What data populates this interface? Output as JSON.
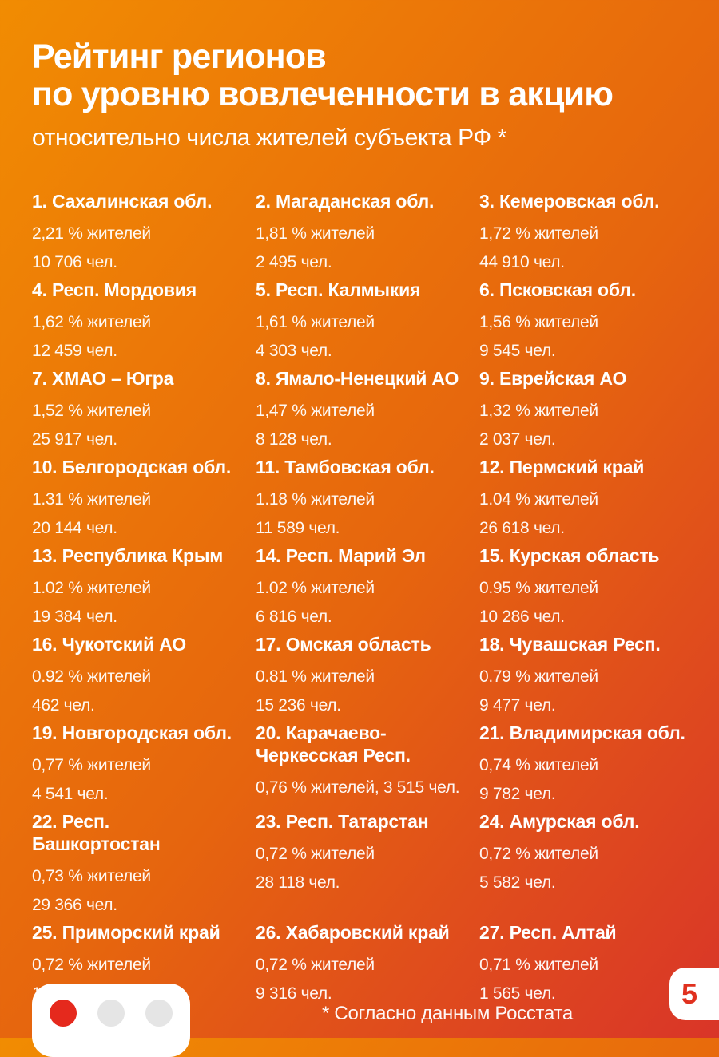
{
  "header": {
    "title_line1": "Рейтинг регионов",
    "title_line2": "по уровню вовлеченности в акцию",
    "subtitle": "относительно числа жителей субъекта РФ *"
  },
  "regions": [
    {
      "label": "1. Сахалинская обл.",
      "percent": "2,21 % жителей",
      "count": "10 706 чел."
    },
    {
      "label": "2. Магаданская обл.",
      "percent": "1,81 % жителей",
      "count": "2 495 чел."
    },
    {
      "label": "3. Кемеровская обл.",
      "percent": "1,72 % жителей",
      "count": "44 910 чел."
    },
    {
      "label": "4. Респ. Мордовия",
      "percent": "1,62 % жителей",
      "count": "12 459 чел."
    },
    {
      "label": "5. Респ. Калмыкия",
      "percent": "1,61 % жителей",
      "count": "4 303 чел."
    },
    {
      "label": "6. Псковская обл.",
      "percent": "1,56 % жителей",
      "count": "9 545 чел."
    },
    {
      "label": "7. ХМАО – Югра",
      "percent": "1,52 % жителей",
      "count": "25 917 чел."
    },
    {
      "label": "8. Ямало-Ненецкий АО",
      "percent": "1,47 % жителей",
      "count": "8 128 чел."
    },
    {
      "label": "9. Еврейская АО",
      "percent": "1,32 % жителей",
      "count": "2 037 чел."
    },
    {
      "label": "10. Белгородская обл.",
      "percent": "1.31 % жителей",
      "count": "20 144 чел."
    },
    {
      "label": "11. Тамбовская обл.",
      "percent": "1.18 % жителей",
      "count": "11 589 чел."
    },
    {
      "label": "12. Пермский край",
      "percent": "1.04 % жителей",
      "count": "26 618 чел."
    },
    {
      "label": "13. Республика Крым",
      "percent": "1.02 % жителей",
      "count": "19 384 чел."
    },
    {
      "label": "14. Респ. Марий Эл",
      "percent": "1.02 % жителей",
      "count": "6 816 чел."
    },
    {
      "label": "15. Курская область",
      "percent": "0.95 % жителей",
      "count": "10 286 чел."
    },
    {
      "label": "16. Чукотский АО",
      "percent": "0.92 % жителей",
      "count": "462 чел."
    },
    {
      "label": "17. Омская область",
      "percent": "0.81 % жителей",
      "count": "15 236 чел."
    },
    {
      "label": "18. Чувашская Респ.",
      "percent": "0.79 % жителей",
      "count": "9 477 чел."
    },
    {
      "label": "19. Новгородская обл.",
      "percent": "0,77 % жителей",
      "count": "4 541 чел."
    },
    {
      "label": "20. Карачаево-Черкесская Респ.",
      "percent": "0,76 % жителей, 3 515 чел.",
      "count": ""
    },
    {
      "label": "21. Владимирская обл.",
      "percent": "0,74 % жителей",
      "count": "9 782 чел."
    },
    {
      "label": "22. Респ. Башкортостан",
      "percent": "0,73 % жителей",
      "count": "29 366 чел."
    },
    {
      "label": "23. Респ. Татарстан",
      "percent": "0,72 % жителей",
      "count": "28 118 чел."
    },
    {
      "label": "24. Амурская обл.",
      "percent": "0,72 % жителей",
      "count": "5 582 чел."
    },
    {
      "label": "25. Приморский край",
      "percent": "0,72 % жителей",
      "count": "13 437 чел."
    },
    {
      "label": "26. Хабаровский край",
      "percent": "0,72 % жителей",
      "count": "9 316 чел."
    },
    {
      "label": "27. Респ. Алтай",
      "percent": "0,71 % жителей",
      "count": "1 565 чел."
    }
  ],
  "footer": {
    "footnote": "* Согласно данным Росстата",
    "page_number": "5",
    "pagination": {
      "dots": [
        {
          "active": true
        },
        {
          "active": false
        },
        {
          "active": false
        }
      ]
    }
  },
  "colors": {
    "background_gradient_start": "#F18C02",
    "background_gradient_end": "#D93528",
    "text": "#FFFFFF",
    "active_dot_red": "#E5291D",
    "inactive_dot_gray": "#E5E5E5",
    "page_number_red": "#E0301E",
    "badge_white": "#FFFFFF"
  }
}
